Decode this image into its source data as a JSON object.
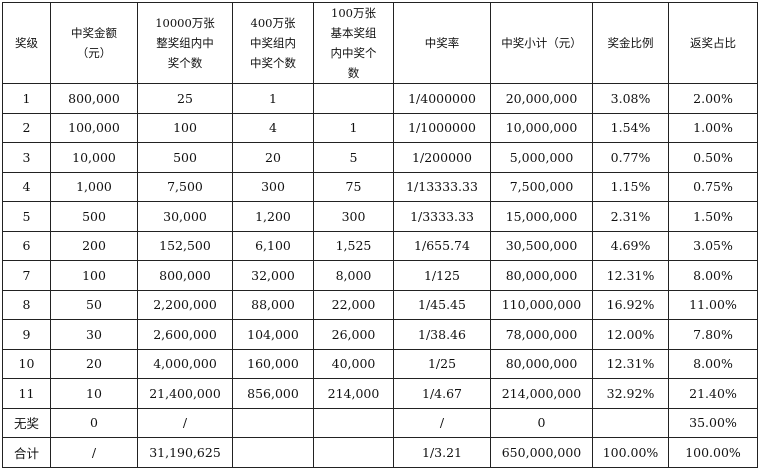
{
  "headers": [
    "奖级",
    "中奖金额（元）",
    "10000万张整奖组内中奖个数",
    "400万张中奖组内中奖个数",
    "100万张基本奖组内中奖个数",
    "中奖率",
    "中奖小计（元）",
    "奖金比例",
    "返奖占比"
  ],
  "rows": [
    [
      "1",
      "800,000",
      "25",
      "1",
      "",
      "1/4000000",
      "20,000,000",
      "3.08%",
      "2.00%"
    ],
    [
      "2",
      "100,000",
      "100",
      "4",
      "1",
      "1/1000000",
      "10,000,000",
      "1.54%",
      "1.00%"
    ],
    [
      "3",
      "10,000",
      "500",
      "20",
      "5",
      "1/200000",
      "5,000,000",
      "0.77%",
      "0.50%"
    ],
    [
      "4",
      "1,000",
      "7,500",
      "300",
      "75",
      "1/13333.33",
      "7,500,000",
      "1.15%",
      "0.75%"
    ],
    [
      "5",
      "500",
      "30,000",
      "1,200",
      "300",
      "1/3333.33",
      "15,000,000",
      "2.31%",
      "1.50%"
    ],
    [
      "6",
      "200",
      "152,500",
      "6,100",
      "1,525",
      "1/655.74",
      "30,500,000",
      "4.69%",
      "3.05%"
    ],
    [
      "7",
      "100",
      "800,000",
      "32,000",
      "8,000",
      "1/125",
      "80,000,000",
      "12.31%",
      "8.00%"
    ],
    [
      "8",
      "50",
      "2,200,000",
      "88,000",
      "22,000",
      "1/45.45",
      "110,000,000",
      "16.92%",
      "11.00%"
    ],
    [
      "9",
      "30",
      "2,600,000",
      "104,000",
      "26,000",
      "1/38.46",
      "78,000,000",
      "12.00%",
      "7.80%"
    ],
    [
      "10",
      "20",
      "4,000,000",
      "160,000",
      "40,000",
      "1/25",
      "80,000,000",
      "12.31%",
      "8.00%"
    ],
    [
      "11",
      "10",
      "21,400,000",
      "856,000",
      "214,000",
      "1/4.67",
      "214,000,000",
      "32.92%",
      "21.40%"
    ],
    [
      "无奖",
      "0",
      "/",
      "",
      "",
      "/",
      "0",
      "",
      "35.00%"
    ],
    [
      "合计",
      "/",
      "31,190,625",
      "",
      "",
      "1/3.21",
      "650,000,000",
      "100.00%",
      "100.00%"
    ]
  ]
}
